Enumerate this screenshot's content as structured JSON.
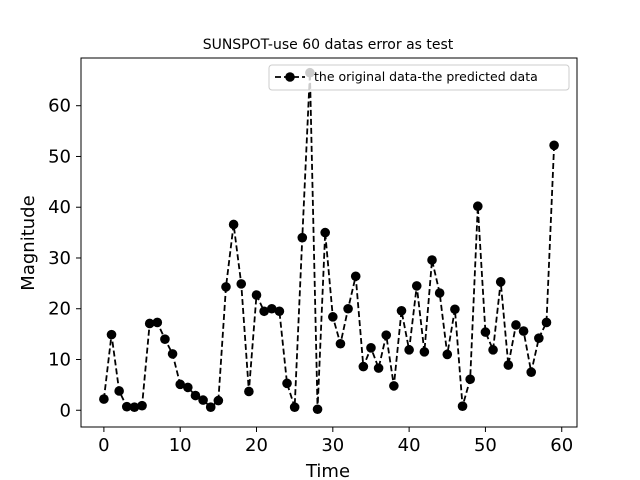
{
  "chart_data": {
    "type": "line",
    "title": "SUNSPOT-use 60 datas error as test",
    "xlabel": "Time",
    "ylabel": "Magnitude",
    "xlim": [
      -3,
      62
    ],
    "ylim": [
      -3.3,
      69.4
    ],
    "xticks": [
      0,
      10,
      20,
      30,
      40,
      50,
      60
    ],
    "yticks": [
      0,
      10,
      20,
      30,
      40,
      50,
      60
    ],
    "grid": false,
    "legend_position": "top-right",
    "series": [
      {
        "name": "the original data-the predicted data",
        "color": "#000000",
        "line_style": "dashed",
        "marker": "circle",
        "x": [
          0,
          1,
          2,
          3,
          4,
          5,
          6,
          7,
          8,
          9,
          10,
          11,
          12,
          13,
          14,
          15,
          16,
          17,
          18,
          19,
          20,
          21,
          22,
          23,
          24,
          25,
          26,
          27,
          28,
          29,
          30,
          31,
          32,
          33,
          34,
          35,
          36,
          37,
          38,
          39,
          40,
          41,
          42,
          43,
          44,
          45,
          46,
          47,
          48,
          49,
          50,
          51,
          52,
          53,
          54,
          55,
          56,
          57,
          58,
          59
        ],
        "values": [
          2.2,
          14.9,
          3.8,
          0.7,
          0.6,
          0.9,
          17.1,
          17.3,
          14.0,
          11.1,
          5.1,
          4.5,
          2.9,
          2.0,
          0.6,
          1.9,
          24.3,
          36.6,
          24.9,
          3.7,
          22.7,
          19.5,
          20.0,
          19.5,
          5.3,
          0.6,
          34.0,
          66.5,
          0.2,
          35.0,
          18.4,
          13.1,
          20.0,
          26.4,
          8.6,
          12.3,
          8.3,
          14.8,
          4.8,
          19.6,
          11.9,
          24.5,
          11.5,
          29.6,
          23.1,
          11.0,
          19.9,
          0.8,
          6.1,
          40.2,
          15.4,
          11.9,
          25.3,
          8.9,
          16.8,
          15.6,
          7.5,
          14.2,
          17.3,
          52.2
        ]
      }
    ]
  }
}
